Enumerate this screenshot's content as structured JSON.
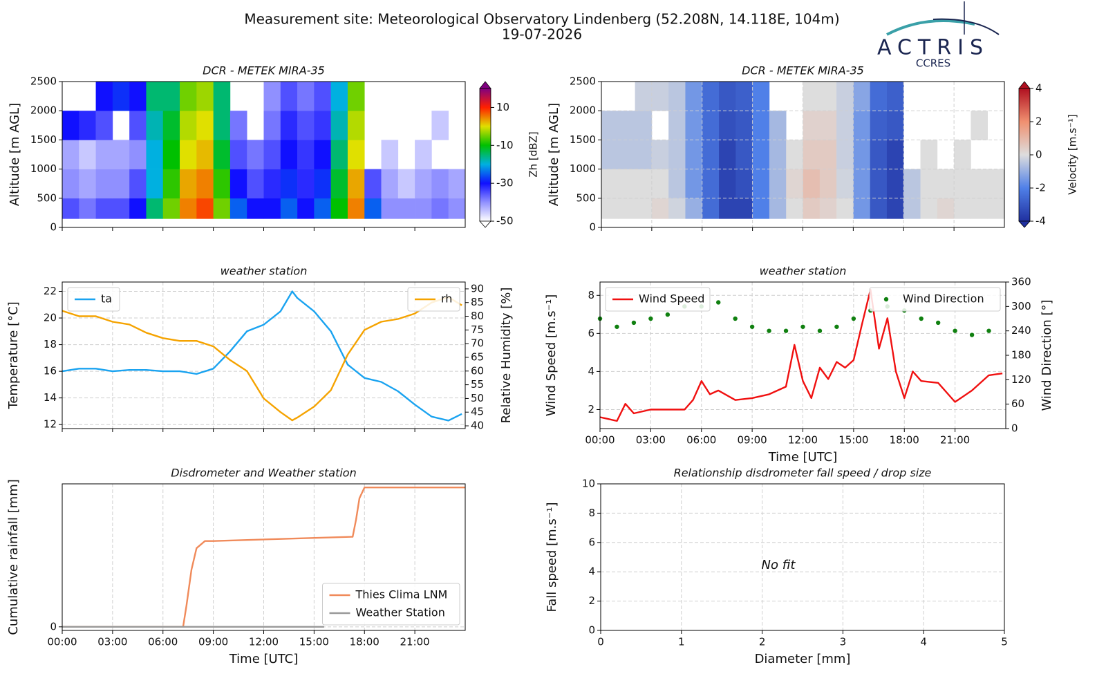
{
  "header": {
    "title": "Measurement site: Meteorological Observatory Lindenberg (52.208N, 14.118E, 104m)",
    "date": "19-07-2026"
  },
  "logo": {
    "name": "ACTRIS",
    "sub": "CCRES"
  },
  "chart_data": [
    {
      "type": "heatmap",
      "title": "DCR - METEK MIRA-35",
      "ylabel": "Altitude [m AGL]",
      "x_edges": [
        0,
        1,
        2,
        3,
        4,
        5,
        6,
        7,
        8,
        9,
        10,
        11,
        12,
        13,
        14,
        15,
        16,
        17,
        18,
        19,
        20,
        21,
        22,
        23,
        24
      ],
      "y_edges": [
        150,
        500,
        1000,
        1500,
        2000,
        2500
      ],
      "z": [
        [
          -35,
          -38,
          -35,
          -35,
          -30,
          -15,
          -5,
          5,
          8,
          -5,
          -25,
          -30,
          -30,
          -25,
          -30,
          -25,
          -10,
          5,
          -25,
          -40,
          -40,
          -40,
          -38,
          -40
        ],
        [
          -40,
          -42,
          -40,
          -40,
          -35,
          -20,
          -8,
          3,
          5,
          -8,
          -30,
          -35,
          -32,
          -28,
          -32,
          -28,
          -12,
          3,
          -35,
          -42,
          -45,
          -42,
          -40,
          -42
        ],
        [
          -42,
          -45,
          -42,
          -42,
          -40,
          -20,
          -10,
          0,
          2,
          -12,
          -35,
          -38,
          -35,
          -30,
          -33,
          -30,
          -15,
          0,
          null,
          -45,
          null,
          -45,
          null,
          null
        ],
        [
          -30,
          -32,
          -35,
          null,
          -35,
          -18,
          -12,
          -2,
          0,
          -15,
          -38,
          null,
          -38,
          -32,
          -35,
          -33,
          -18,
          -2,
          null,
          null,
          null,
          null,
          -45,
          null
        ],
        [
          null,
          null,
          -30,
          -28,
          -30,
          -15,
          -15,
          -5,
          -3,
          -15,
          null,
          null,
          -40,
          -35,
          -38,
          -35,
          -20,
          -5,
          null,
          null,
          null,
          null,
          null,
          null
        ]
      ],
      "xlim": [
        0,
        24
      ],
      "ylim": [
        0,
        2500
      ],
      "xticks": [
        0,
        3,
        6,
        9,
        12,
        15,
        18,
        21
      ],
      "yticks": [
        0,
        500,
        1000,
        1500,
        2000,
        2500
      ],
      "xticklabels": false,
      "grid": false,
      "colorbar": {
        "label": "Zh [dBZ]",
        "lim": [
          -50,
          20
        ],
        "ticks": [
          -50,
          -30,
          -10,
          10
        ],
        "colors": [
          "#ffffff",
          "#9090ff",
          "#1010ff",
          "#00b0e0",
          "#00c000",
          "#e0e000",
          "#ff2000",
          "#800080"
        ]
      }
    },
    {
      "type": "heatmap",
      "title": "DCR - METEK MIRA-35",
      "ylabel": "Altitude [m AGL]",
      "x_edges": [
        0,
        1,
        2,
        3,
        4,
        5,
        6,
        7,
        8,
        9,
        10,
        11,
        12,
        13,
        14,
        15,
        16,
        17,
        18,
        19,
        20,
        21,
        22,
        23,
        24
      ],
      "y_edges": [
        150,
        500,
        1000,
        1500,
        2000,
        2500
      ],
      "z": [
        [
          0,
          0,
          0,
          0.2,
          -0.2,
          -1,
          -2.5,
          -3.5,
          -3.5,
          -2,
          -0.8,
          0,
          0.5,
          0.3,
          0,
          -1.5,
          -3,
          -3.5,
          -0.5,
          0,
          0.2,
          0,
          0,
          0
        ],
        [
          0,
          0,
          0,
          0,
          -0.5,
          -1.5,
          -2.5,
          -3.5,
          -3.2,
          -2,
          -0.8,
          0.2,
          0.8,
          0.5,
          -0.2,
          -1.5,
          -3,
          -3.5,
          -0.5,
          0,
          0,
          0,
          0,
          0
        ],
        [
          -0.5,
          -0.5,
          -0.5,
          -0.3,
          -0.5,
          -1.5,
          -2.5,
          -3.5,
          -3,
          -2,
          -0.8,
          0,
          0.5,
          0.5,
          -0.3,
          -1.5,
          -3,
          -3.5,
          null,
          0,
          null,
          0,
          null,
          null
        ],
        [
          -0.5,
          -0.5,
          -0.5,
          null,
          -0.5,
          -1.5,
          -2.5,
          -3.2,
          -3,
          -2,
          -0.8,
          null,
          0.3,
          0.3,
          -0.3,
          -1.5,
          -2.8,
          -3,
          null,
          null,
          null,
          null,
          0,
          null
        ],
        [
          null,
          null,
          -0.3,
          -0.3,
          -0.5,
          -1.5,
          -2.5,
          -3,
          -2.8,
          -2,
          null,
          null,
          0,
          0,
          -0.3,
          -1.2,
          -2.5,
          -2.8,
          null,
          null,
          null,
          null,
          null,
          null
        ]
      ],
      "xlim": [
        0,
        24
      ],
      "ylim": [
        0,
        2500
      ],
      "xticks": [
        0,
        3,
        6,
        9,
        12,
        15,
        18,
        21
      ],
      "yticks": [
        0,
        500,
        1000,
        1500,
        2000,
        2500
      ],
      "xticklabels": false,
      "grid": true,
      "colorbar": {
        "label": "Velocity [m.s⁻¹]",
        "lim": [
          -4,
          4
        ],
        "ticks": [
          -4,
          -2,
          0,
          2,
          4
        ],
        "colors": [
          "#2030a0",
          "#5080e8",
          "#dddddd",
          "#f09070",
          "#b01020"
        ]
      }
    },
    {
      "type": "line",
      "title": "weather station",
      "ylabel": "Temperature [°C]",
      "y2label": "Relative Humidity [%]",
      "xlim": [
        0,
        24
      ],
      "ylim": [
        11.7,
        22.7
      ],
      "y2lim": [
        39,
        92.5
      ],
      "xticks": [
        0,
        3,
        6,
        9,
        12,
        15,
        18,
        21
      ],
      "xticklabels": false,
      "yticks": [
        12,
        14,
        16,
        18,
        20,
        22
      ],
      "y2ticks": [
        40,
        45,
        50,
        55,
        60,
        65,
        70,
        75,
        80,
        85,
        90
      ],
      "grid": true,
      "series": [
        {
          "name": "ta",
          "color": "#1aa3f0",
          "legend": "upper left",
          "x": [
            0,
            1,
            2,
            3,
            4,
            5,
            6,
            7,
            8,
            9,
            10,
            11,
            12,
            13,
            13.7,
            14,
            15,
            16,
            17,
            18,
            19,
            20,
            21,
            22,
            23,
            23.8
          ],
          "values": [
            16,
            16.2,
            16.2,
            16,
            16.1,
            16.1,
            16,
            16,
            15.8,
            16.2,
            17.5,
            19,
            19.5,
            20.5,
            22,
            21.5,
            20.5,
            19,
            16.5,
            15.5,
            15.2,
            14.5,
            13.5,
            12.6,
            12.3,
            12.8
          ]
        },
        {
          "name": "rh",
          "color": "#f5a300",
          "legend": "upper right",
          "axis": "y2",
          "x": [
            0,
            1,
            2,
            3,
            4,
            5,
            6,
            7,
            8,
            9,
            10,
            11,
            12,
            13,
            13.7,
            14,
            15,
            16,
            17,
            18,
            19,
            20,
            21,
            22,
            23,
            23.8
          ],
          "values": [
            82,
            80,
            80,
            78,
            77,
            74,
            72,
            71,
            71,
            69,
            64,
            60,
            50,
            45,
            42,
            43,
            47,
            53,
            66,
            75,
            78,
            79,
            81,
            85,
            87,
            84
          ]
        }
      ]
    },
    {
      "type": "line",
      "title": "weather station",
      "xlabel": "Time [UTC]",
      "ylabel": "Wind Speed [m.s⁻¹]",
      "y2label": "Wind Direction [°]",
      "xlim": [
        0,
        24
      ],
      "ylim": [
        1,
        8.7
      ],
      "y2lim": [
        0,
        360
      ],
      "xticklabels": true,
      "xticks": [
        {
          "value": 0,
          "label": "00:00"
        },
        {
          "value": 3,
          "label": "03:00"
        },
        {
          "value": 6,
          "label": "06:00"
        },
        {
          "value": 9,
          "label": "09:00"
        },
        {
          "value": 12,
          "label": "12:00"
        },
        {
          "value": 15,
          "label": "15:00"
        },
        {
          "value": 18,
          "label": "18:00"
        },
        {
          "value": 21,
          "label": "21:00"
        }
      ],
      "yticks": [
        2,
        4,
        6,
        8
      ],
      "y2ticks": [
        0,
        60,
        120,
        180,
        240,
        300,
        360
      ],
      "grid": true,
      "series": [
        {
          "name": "Wind Speed",
          "color": "#f01010",
          "legend": "upper left",
          "x": [
            0,
            0.5,
            1,
            1.5,
            2,
            3,
            4,
            5,
            5.5,
            6,
            6.5,
            7,
            8,
            9,
            10,
            11,
            11.5,
            12,
            12.5,
            13,
            13.5,
            14,
            14.5,
            15,
            15.5,
            16,
            16.5,
            17,
            17.5,
            18,
            18.5,
            19,
            20,
            21,
            22,
            23,
            23.8
          ],
          "values": [
            1.6,
            1.5,
            1.4,
            2.3,
            1.8,
            2,
            2,
            2,
            2.5,
            3.5,
            2.8,
            3,
            2.5,
            2.6,
            2.8,
            3.2,
            5.4,
            3.5,
            2.6,
            4.2,
            3.6,
            4.5,
            4.2,
            4.6,
            6.5,
            8.3,
            5.2,
            6.8,
            4,
            2.6,
            4,
            3.5,
            3.4,
            2.4,
            3,
            3.8,
            3.9
          ]
        },
        {
          "name": "Wind Direction",
          "color": "#108010",
          "legend": "upper right",
          "axis": "y2",
          "kind": "scatter",
          "x": [
            0,
            1,
            2,
            3,
            4,
            5,
            6,
            7,
            8,
            9,
            10,
            11,
            12,
            13,
            14,
            15,
            16,
            17,
            18,
            19,
            20,
            21,
            22,
            23
          ],
          "values": [
            270,
            250,
            260,
            270,
            280,
            300,
            300,
            310,
            270,
            250,
            240,
            240,
            250,
            240,
            250,
            270,
            290,
            300,
            290,
            270,
            260,
            240,
            230,
            240
          ]
        }
      ]
    },
    {
      "type": "line",
      "title": "Disdrometer and Weather station",
      "xlabel": "Time [UTC]",
      "ylabel": "Cumulative rainfall [mm]",
      "xlim": [
        0,
        24
      ],
      "ylim": [
        -0.25,
        10
      ],
      "xticklabels": true,
      "xticks": [
        {
          "value": 0,
          "label": "00:00"
        },
        {
          "value": 3,
          "label": "03:00"
        },
        {
          "value": 6,
          "label": "06:00"
        },
        {
          "value": 9,
          "label": "09:00"
        },
        {
          "value": 12,
          "label": "12:00"
        },
        {
          "value": 15,
          "label": "15:00"
        },
        {
          "value": 18,
          "label": "18:00"
        },
        {
          "value": 21,
          "label": "21:00"
        }
      ],
      "yticks": [
        0
      ],
      "grid": true,
      "series": [
        {
          "name": "Thies Clima LNM",
          "color": "#f08a5a",
          "legend": "lower right",
          "x": [
            0,
            7.2,
            7.4,
            7.7,
            8,
            8.5,
            9,
            17.3,
            17.5,
            17.7,
            18,
            24
          ],
          "values": [
            0,
            0,
            1.5,
            4,
            5.5,
            6,
            6,
            6.3,
            7.5,
            9,
            9.75,
            9.75
          ]
        },
        {
          "name": "Weather Station",
          "color": "#999999",
          "legend": "lower right",
          "x": [
            0,
            15.6
          ],
          "values": [
            0,
            0
          ]
        }
      ]
    },
    {
      "type": "scatter",
      "title": "Relationship disdrometer fall speed / drop size",
      "xlabel": "Diameter [mm]",
      "ylabel": "Fall speed [m.s⁻¹]",
      "xlim": [
        0,
        5
      ],
      "ylim": [
        0,
        10
      ],
      "xticks": [
        0,
        1,
        2,
        3,
        4,
        5
      ],
      "yticks": [
        0,
        2,
        4,
        6,
        8,
        10
      ],
      "xticklabels": true,
      "grid": true,
      "annotation": "No fit",
      "series": []
    }
  ]
}
